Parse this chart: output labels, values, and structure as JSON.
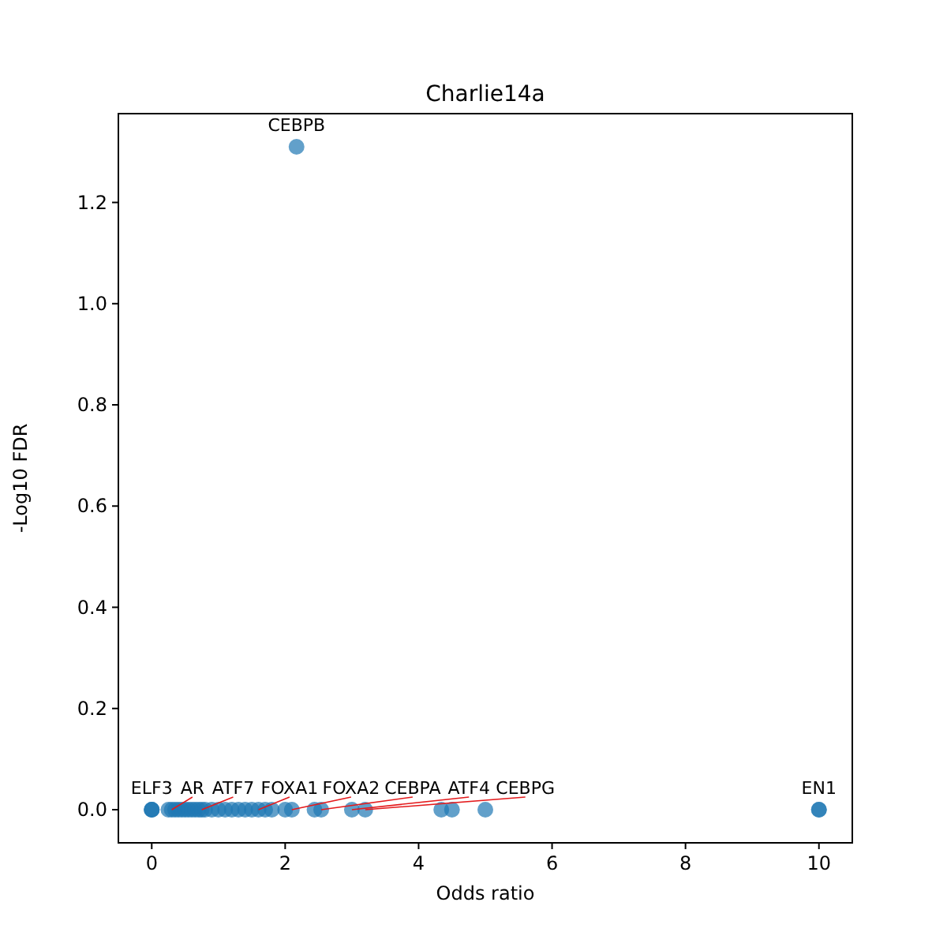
{
  "chart_data": {
    "type": "scatter",
    "title": "Charlie14a",
    "xlabel": "Odds ratio",
    "ylabel": "-Log10 FDR",
    "x": [
      0,
      0,
      0,
      0.25,
      0.3,
      0.35,
      0.4,
      0.45,
      0.5,
      0.55,
      0.6,
      0.65,
      0.7,
      0.75,
      0.8,
      0.9,
      1.0,
      1.1,
      1.2,
      1.3,
      1.4,
      1.5,
      1.6,
      1.7,
      1.8,
      2.0,
      2.1,
      2.17,
      2.44,
      2.54,
      3.0,
      3.2,
      4.34,
      4.5,
      5.0,
      10,
      10
    ],
    "series": [
      {
        "color": "#1f77b4",
        "values": [
          0,
          0,
          0,
          0,
          0,
          0,
          0,
          0,
          0,
          0,
          0,
          0,
          0,
          0,
          0,
          0,
          0,
          0,
          0,
          0,
          0,
          0,
          0,
          0,
          0,
          0,
          0,
          1.31,
          0,
          0,
          0,
          0,
          0,
          0,
          0,
          0,
          0
        ]
      }
    ],
    "xlim": [
      -0.5,
      10.5
    ],
    "xticks": [
      0,
      2,
      4,
      6,
      8,
      10
    ],
    "ylim": [
      -0.0655,
      1.3755
    ],
    "yticks": [
      {
        "value": 0,
        "label": "0.0"
      },
      {
        "value": 0.2,
        "label": "0.2"
      },
      {
        "value": 0.4,
        "label": "0.4"
      },
      {
        "value": 0.6,
        "label": "0.6"
      },
      {
        "value": 0.8,
        "label": "0.8"
      },
      {
        "value": 1,
        "label": "1.0"
      },
      {
        "value": 1.2,
        "label": "1.2"
      }
    ],
    "marker": "circle",
    "grid": false,
    "annotations": [
      {
        "text": "CEBPB",
        "x": 2.17,
        "y": 1.31
      },
      {
        "text": "ELF3",
        "x": 0,
        "y": 0
      },
      {
        "text": "AR",
        "x": 0.3,
        "y": 0
      },
      {
        "text": "ATF7",
        "x": 0.75,
        "y": 0
      },
      {
        "text": "FOXA1",
        "x": 1.6,
        "y": 0
      },
      {
        "text": "FOXA2",
        "x": 2.1,
        "y": 0
      },
      {
        "text": "CEBPA",
        "x": 2.54,
        "y": 0
      },
      {
        "text": "ATF4",
        "x": 3.0,
        "y": 0
      },
      {
        "text": "CEBPG",
        "x": 3.2,
        "y": 0
      },
      {
        "text": "EN1",
        "x": 10,
        "y": 0
      }
    ]
  }
}
